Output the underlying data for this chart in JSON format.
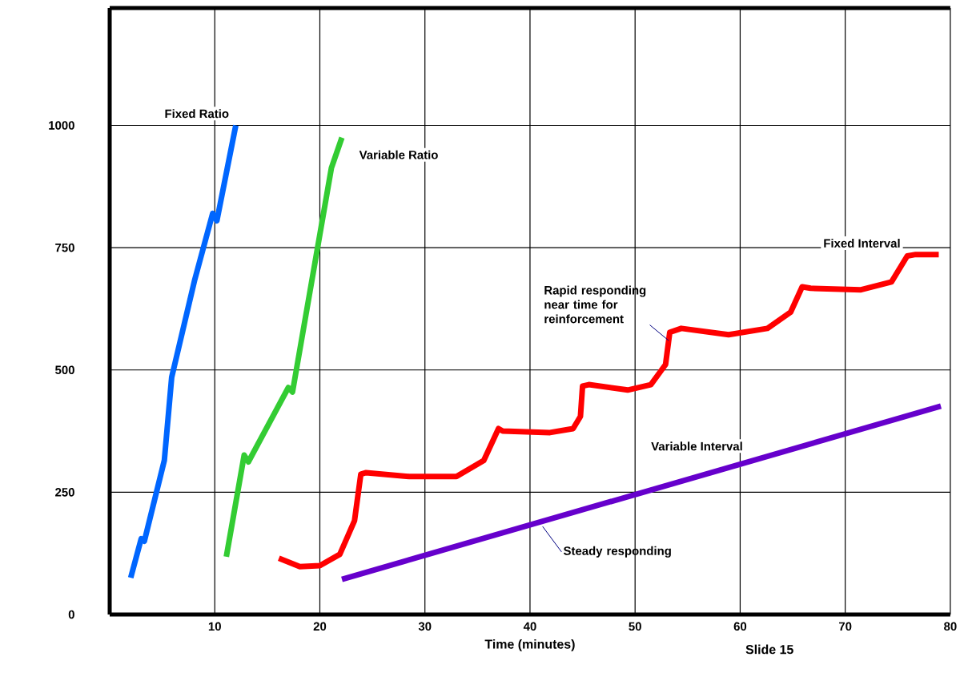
{
  "chart_data": {
    "type": "line",
    "xlabel": "Time (minutes)",
    "xlim": [
      0,
      80
    ],
    "ylim": [
      0,
      1240
    ],
    "xticks": [
      10,
      20,
      30,
      40,
      50,
      60,
      70,
      80
    ],
    "yticks": [
      0,
      250,
      500,
      750,
      1000
    ],
    "grid": true,
    "series": [
      {
        "name": "Fixed Ratio",
        "color": "#0066ff",
        "x": [
          2,
          3,
          3.3,
          5.2,
          5.9,
          8.1,
          9.8,
          10.2,
          12
        ],
        "values": [
          75,
          155,
          150,
          315,
          485,
          685,
          820,
          805,
          1000
        ]
      },
      {
        "name": "Variable Ratio",
        "color": "#33cc33",
        "x": [
          11.1,
          12.8,
          13.2,
          17,
          17.4,
          21.1,
          22.1
        ],
        "values": [
          118,
          326,
          312,
          464,
          455,
          913,
          975
        ]
      },
      {
        "name": "Fixed Interval",
        "color": "#ff0000",
        "x": [
          16.1,
          18.1,
          20,
          21.9,
          23.3,
          23.9,
          24.4,
          28.5,
          33,
          35.6,
          37,
          37.4,
          41.9,
          44.1,
          44.8,
          45,
          45.6,
          49.3,
          51.5,
          52.9,
          53.3,
          54.4,
          58.9,
          62.6,
          64.8,
          65.9,
          66.7,
          71.5,
          74.4,
          75.9,
          76.7,
          78.9
        ],
        "values": [
          115,
          98,
          100,
          123,
          192,
          287,
          290,
          282,
          282,
          315,
          380,
          375,
          372,
          380,
          405,
          467,
          470,
          459,
          470,
          511,
          577,
          585,
          572,
          585,
          618,
          670,
          667,
          664,
          680,
          733,
          736,
          736
        ]
      },
      {
        "name": "Variable Interval",
        "color": "#6600cc",
        "x": [
          22.1,
          79.1
        ],
        "values": [
          72,
          426
        ]
      }
    ],
    "annotations": [
      {
        "text": "Rapid responding near time for reinforcement",
        "x": 53.2,
        "y": 560
      },
      {
        "text": "Steady responding",
        "x": 41.2,
        "y": 180
      },
      "Slide 15"
    ]
  }
}
